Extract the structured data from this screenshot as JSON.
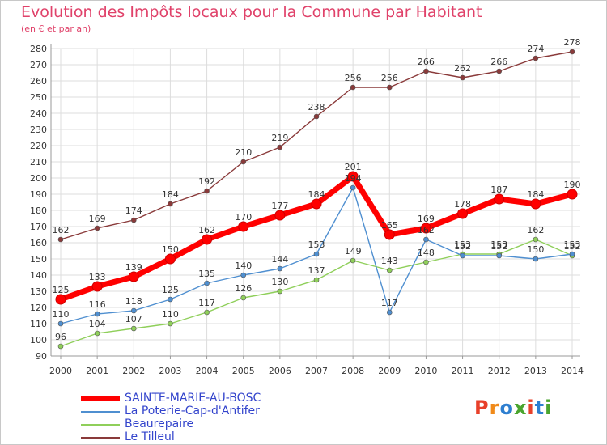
{
  "header": {
    "title": "Evolution des Impôts locaux pour la Commune par Habitant",
    "subtitle": "(en € et par an)"
  },
  "logo": {
    "text": "Proxiti",
    "colors": [
      "#e8402a",
      "#f08a1a",
      "#2e7fd0",
      "#4aa52e",
      "#e8402a",
      "#2e7fd0",
      "#4aa52e"
    ]
  },
  "chart_data": {
    "type": "line",
    "title": "Evolution des Impôts locaux pour la Commune par Habitant",
    "subtitle": "(en € et par an)",
    "x": [
      "2000",
      "2001",
      "2002",
      "2003",
      "2004",
      "2005",
      "2006",
      "2007",
      "2008",
      "2009",
      "2010",
      "2011",
      "2012",
      "2013",
      "2014"
    ],
    "ylim": [
      90,
      280
    ],
    "yticks": [
      90,
      100,
      110,
      120,
      130,
      140,
      150,
      160,
      170,
      180,
      190,
      200,
      210,
      220,
      230,
      240,
      250,
      260,
      270,
      280
    ],
    "grid": true,
    "legend_position": "bottom-left",
    "series": [
      {
        "name": "SAINTE-MARIE-AU-BOSC",
        "color": "#ff0000",
        "values": [
          125,
          133,
          139,
          150,
          162,
          170,
          177,
          184,
          201,
          165,
          169,
          178,
          187,
          184,
          190
        ],
        "labels": [
          "125",
          "133",
          "139",
          "150",
          "162",
          "170",
          "177",
          "184",
          "201",
          "165",
          "169",
          "178",
          "187",
          "184",
          "190"
        ]
      },
      {
        "name": "La Poterie-Cap-d'Antifer",
        "color": "#4f8fd0",
        "values": [
          110,
          116,
          118,
          125,
          135,
          140,
          144,
          153,
          194,
          117,
          162,
          152,
          152,
          150,
          153
        ],
        "labels": [
          "110",
          "116",
          "118",
          "125",
          "135",
          "140",
          "144",
          "153",
          "194",
          "117",
          "162",
          "152",
          "152",
          "150",
          "153"
        ]
      },
      {
        "name": "Beaurepaire",
        "color": "#8fcf5a",
        "values": [
          96,
          104,
          107,
          110,
          117,
          126,
          130,
          137,
          149,
          143,
          148,
          153,
          153,
          162,
          152
        ],
        "labels": [
          "96",
          "104",
          "107",
          "110",
          "117",
          "126",
          "130",
          "137",
          "149",
          "143",
          "148",
          "153",
          "153",
          "162",
          "152"
        ]
      },
      {
        "name": "Le Tilleul",
        "color": "#8a3a3a",
        "values": [
          162,
          169,
          174,
          184,
          192,
          210,
          219,
          238,
          256,
          256,
          266,
          262,
          266,
          274,
          278
        ],
        "labels": [
          "162",
          "169",
          "174",
          "184",
          "192",
          "210",
          "219",
          "238",
          "256",
          "256",
          "266",
          "262",
          "266",
          "274",
          "278"
        ]
      }
    ]
  }
}
